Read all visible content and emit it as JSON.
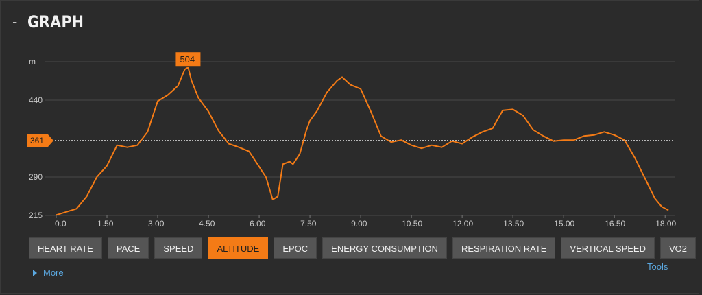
{
  "header": {
    "collapse_symbol": "-",
    "title": "GRAPH"
  },
  "chart_data": {
    "type": "line",
    "ylabel": "m",
    "yticks": [
      "440",
      "290",
      "215"
    ],
    "ytick_values": [
      440,
      290,
      215
    ],
    "ylim": [
      215,
      515
    ],
    "xlim": [
      0,
      18.3
    ],
    "xticks": [
      "0.0",
      "1.50",
      "3.00",
      "4.50",
      "6.00",
      "7.50",
      "9.00",
      "10.50",
      "12.00",
      "13.50",
      "15.00",
      "16.50",
      "18.00"
    ],
    "xtick_values": [
      0,
      1.5,
      3,
      4.5,
      6,
      7.5,
      9,
      10.5,
      12,
      13.5,
      15,
      16.5,
      18
    ],
    "grid": true,
    "line_color": "#f47b16",
    "peak_label": "504",
    "peak": {
      "x": 3.9,
      "y": 504
    },
    "average_label": "361",
    "average_value": 361,
    "series": [
      {
        "x": [
          0,
          0.3,
          0.6,
          0.9,
          1.2,
          1.5,
          1.8,
          2.1,
          2.4,
          2.7,
          3.0,
          3.3,
          3.6,
          3.8,
          3.9,
          4.0,
          4.2,
          4.5,
          4.8,
          5.1,
          5.4,
          5.7,
          6.0,
          6.2,
          6.4,
          6.55,
          6.7,
          6.9,
          7.0,
          7.2,
          7.4,
          7.5,
          7.7,
          8.0,
          8.3,
          8.45,
          8.7,
          9.0,
          9.3,
          9.6,
          9.9,
          10.2,
          10.5,
          10.8,
          11.1,
          11.4,
          11.7,
          12.0,
          12.3,
          12.6,
          12.9,
          13.2,
          13.5,
          13.8,
          14.1,
          14.4,
          14.7,
          15.0,
          15.3,
          15.6,
          15.9,
          16.2,
          16.5,
          16.8,
          17.1,
          17.4,
          17.7,
          17.9,
          18.1
        ],
        "values": [
          216,
          222,
          228,
          252,
          290,
          312,
          352,
          348,
          352,
          378,
          438,
          450,
          468,
          500,
          504,
          478,
          445,
          418,
          380,
          355,
          348,
          340,
          310,
          290,
          246,
          252,
          315,
          320,
          315,
          335,
          382,
          400,
          418,
          455,
          478,
          485,
          470,
          462,
          418,
          370,
          358,
          362,
          352,
          346,
          352,
          348,
          360,
          355,
          368,
          378,
          385,
          420,
          422,
          410,
          382,
          370,
          360,
          362,
          362,
          370,
          372,
          378,
          372,
          362,
          328,
          288,
          248,
          232,
          225
        ]
      }
    ]
  },
  "tabs": [
    {
      "label": "HEART RATE",
      "active": false
    },
    {
      "label": "PACE",
      "active": false
    },
    {
      "label": "SPEED",
      "active": false
    },
    {
      "label": "ALTITUDE",
      "active": true
    },
    {
      "label": "EPOC",
      "active": false
    },
    {
      "label": "ENERGY CONSUMPTION",
      "active": false
    },
    {
      "label": "RESPIRATION RATE",
      "active": false
    },
    {
      "label": "VERTICAL SPEED",
      "active": false
    },
    {
      "label": "VO2",
      "active": false
    }
  ],
  "more_label": "More",
  "tools_label": "Tools"
}
